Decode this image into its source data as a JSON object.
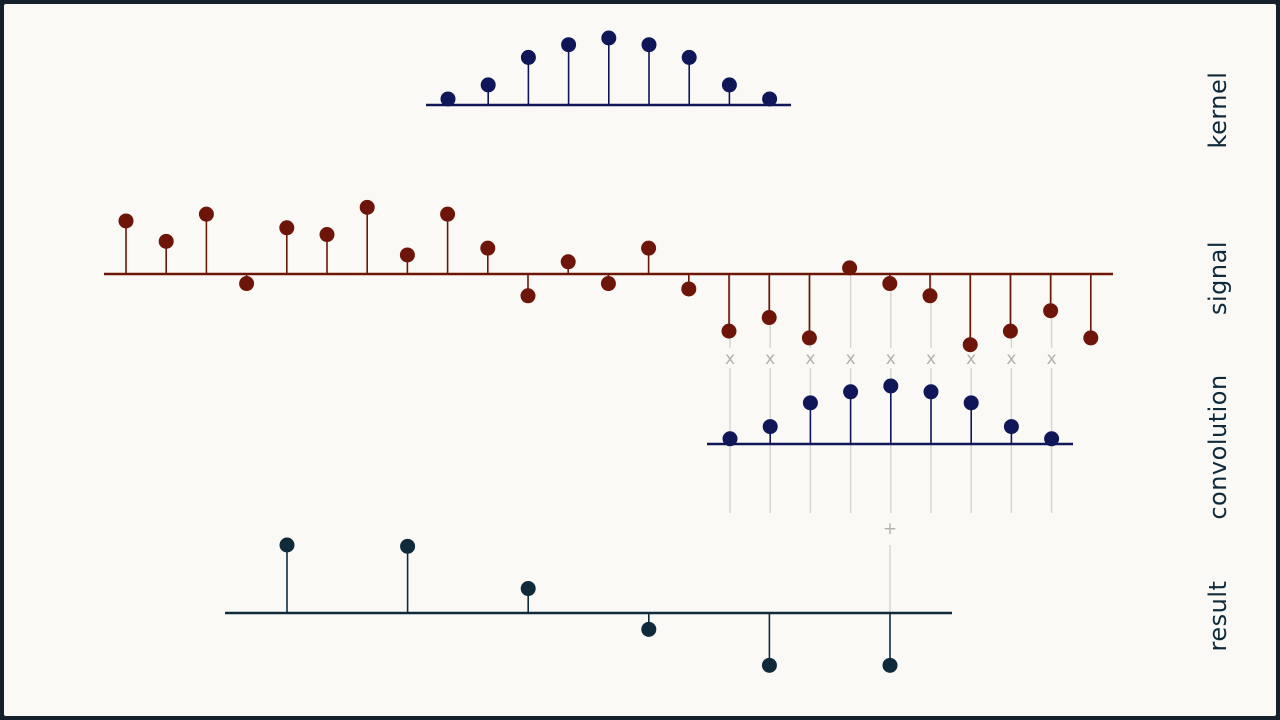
{
  "colors": {
    "background": "#fbf9f6",
    "frame": "#14202b",
    "kernel": "#0f1758",
    "signal": "#6e1509",
    "result": "#0f2a3a",
    "guide": "#d6d4d1",
    "operator": "#b3b1ae"
  },
  "labels": {
    "kernel": "kernel",
    "signal": "signal",
    "convolution": "convolution",
    "result": "result"
  },
  "operators": {
    "multiply": "x",
    "sum": "+"
  },
  "chart_data": [
    {
      "type": "stem",
      "name": "kernel",
      "values": [
        0.09,
        0.3,
        0.71,
        0.9,
        1.0,
        0.9,
        0.71,
        0.3,
        0.09
      ]
    },
    {
      "type": "stem",
      "name": "signal",
      "values": [
        0.78,
        0.48,
        0.88,
        -0.14,
        0.68,
        0.58,
        0.98,
        0.28,
        0.88,
        0.38,
        -0.32,
        0.18,
        -0.14,
        0.38,
        -0.22,
        -0.84,
        -0.64,
        -0.94,
        0.09,
        -0.14,
        -0.32,
        -1.04,
        -0.84,
        -0.54,
        -0.94
      ]
    },
    {
      "type": "stem",
      "name": "convolution",
      "values": [
        0.09,
        0.3,
        0.71,
        0.9,
        1.0,
        0.9,
        0.71,
        0.3,
        0.09
      ]
    },
    {
      "type": "stem",
      "name": "result",
      "values": [
        1.0,
        0.98,
        0.36,
        -0.24,
        -0.77,
        -0.77
      ]
    }
  ]
}
